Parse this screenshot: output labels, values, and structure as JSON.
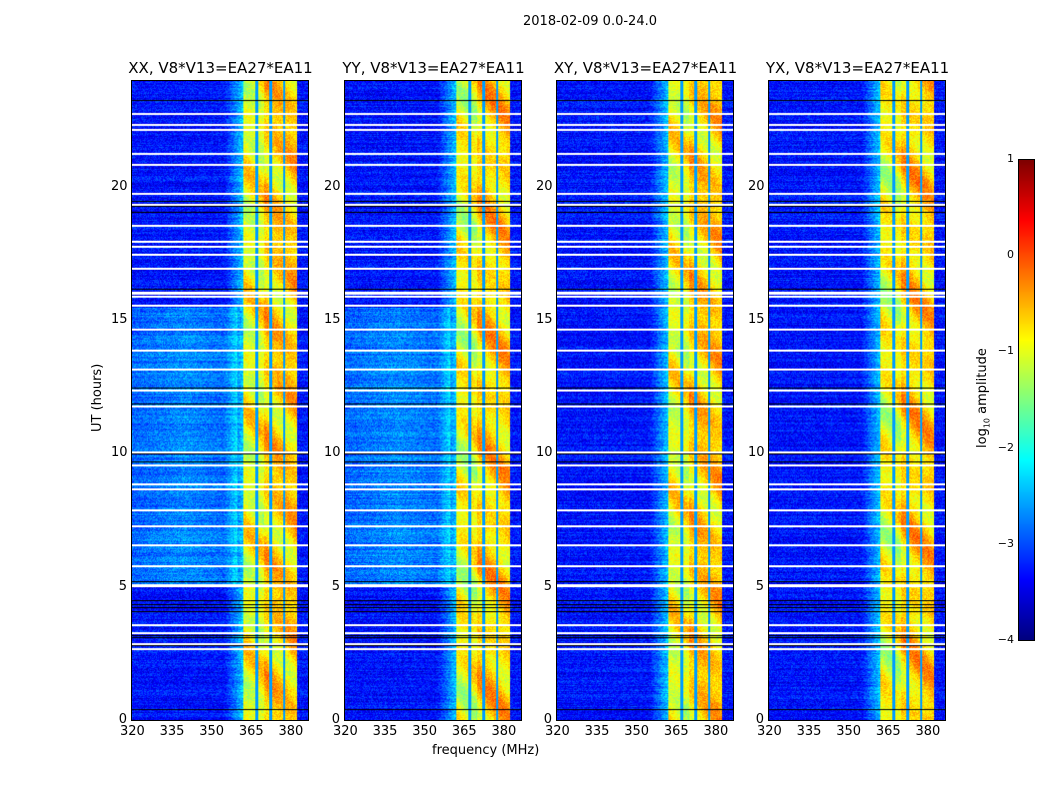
{
  "chart_data": {
    "type": "heatmap",
    "title": "2018-02-09 0.0-24.0",
    "xlabel": "frequency (MHz)",
    "ylabel": "UT (hours)",
    "xlim": [
      320,
      387
    ],
    "ylim": [
      0,
      24
    ],
    "xticks": [
      320,
      335,
      350,
      365,
      380
    ],
    "yticks": [
      0,
      5,
      10,
      15,
      20
    ],
    "panels": [
      {
        "title": "XX, V8*V13=EA27*EA11",
        "left_excess": true
      },
      {
        "title": "YY, V8*V13=EA27*EA11",
        "left_excess": true
      },
      {
        "title": "XY, V8*V13=EA27*EA11",
        "left_excess": false
      },
      {
        "title": "YX, V8*V13=EA27*EA11",
        "left_excess": false
      }
    ],
    "bright_band_mhz": [
      362.3,
      382.6
    ],
    "band_gaps_mhz": [
      367.2,
      372.5,
      377.7
    ],
    "flagged_hours_white": [
      2.7,
      2.9,
      3.3,
      3.6,
      5.05,
      5.1,
      5.8,
      6.6,
      7.3,
      7.9,
      8.7,
      8.9,
      9.6,
      10.1,
      11.8,
      12.4,
      13.2,
      13.9,
      14.7,
      15.6,
      15.95,
      16.05,
      16.1,
      17.0,
      17.5,
      17.8,
      18.0,
      18.6,
      19.4,
      19.8,
      20.9,
      21.3,
      22.2,
      22.4,
      22.8
    ],
    "flagged_hours_black": [
      0.4,
      2.8,
      3.1,
      3.2,
      4.1,
      4.25,
      4.35,
      4.5,
      5.2,
      9.7,
      10.0,
      11.9,
      12.5,
      16.2,
      19.1,
      19.3,
      19.5,
      23.3
    ],
    "colorbar": {
      "label": "log10 amplitude",
      "label_main": "log",
      "label_sub": "10",
      "label_rest": " amplitude",
      "range": [
        -4,
        1
      ],
      "ticks": [
        "1",
        "0",
        "−1",
        "−2",
        "−3",
        "−4"
      ],
      "tick_values": [
        1,
        0,
        -1,
        -2,
        -3,
        -4
      ],
      "colormap": "jet"
    }
  }
}
